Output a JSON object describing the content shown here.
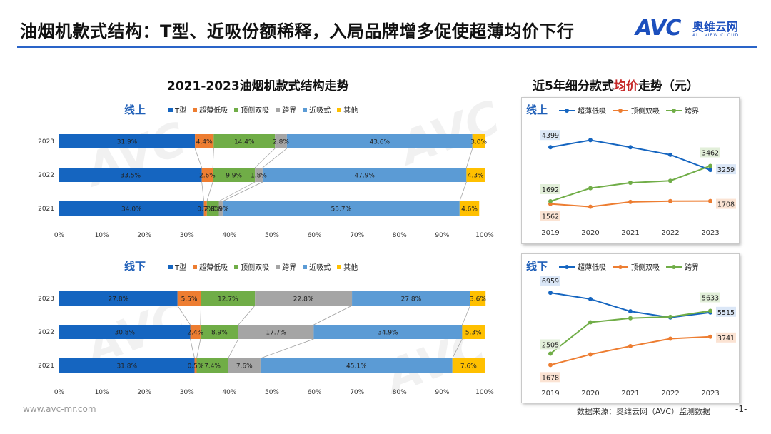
{
  "header": {
    "title": "油烟机款式结构：T型、近吸份额稀释，入局品牌增多促使超薄均价下行",
    "logo_text": "AVC",
    "logo_cn": "奥维云网",
    "logo_en": "ALL VIEW CLOUD"
  },
  "left": {
    "title": "2021-2023油烟机款式结构走势",
    "legend": [
      "T型",
      "超薄低吸",
      "顶侧双吸",
      "跨界",
      "近吸式",
      "其他"
    ]
  },
  "right": {
    "title_pre": "近5年细分款式",
    "title_em": "均价",
    "title_post": "走势（元）",
    "legend": [
      "超薄低吸",
      "顶侧双吸",
      "跨界"
    ]
  },
  "colors": {
    "t": "#1565c0",
    "ultra": "#ed7d31",
    "dual": "#70ad47",
    "cross": "#a5a5a5",
    "near": "#5b9bd5",
    "other": "#ffc000"
  },
  "chart_data": [
    {
      "type": "bar",
      "orientation": "horizontal",
      "stacked": "percent",
      "panel": "线上",
      "categories": [
        "2023",
        "2022",
        "2021"
      ],
      "series": [
        {
          "name": "T型",
          "values": [
            31.9,
            33.5,
            34.0
          ],
          "labels": [
            "31.9%",
            "33.5%",
            "34.0%"
          ]
        },
        {
          "name": "超薄低吸",
          "values": [
            4.4,
            2.6,
            0.7
          ],
          "labels": [
            "4.4%",
            "2.6%",
            "0.7%"
          ]
        },
        {
          "name": "顶侧双吸",
          "values": [
            14.4,
            9.9,
            2.8
          ],
          "labels": [
            "14.4%",
            "9.9%",
            "2.8%"
          ]
        },
        {
          "name": "跨界",
          "values": [
            2.8,
            1.8,
            0.9
          ],
          "labels": [
            "2.8%",
            "1.8%",
            "0.9%"
          ]
        },
        {
          "name": "近吸式",
          "values": [
            43.6,
            47.9,
            55.7
          ],
          "labels": [
            "43.6%",
            "47.9%",
            "55.7%"
          ]
        },
        {
          "name": "其他",
          "values": [
            3.0,
            4.3,
            4.6
          ],
          "labels": [
            "3.0%",
            "4.3%",
            "4.6%"
          ]
        }
      ],
      "xticks": [
        "0%",
        "10%",
        "20%",
        "30%",
        "40%",
        "50%",
        "60%",
        "70%",
        "80%",
        "90%",
        "100%"
      ],
      "xlim": [
        0,
        100
      ]
    },
    {
      "type": "bar",
      "orientation": "horizontal",
      "stacked": "percent",
      "panel": "线下",
      "categories": [
        "2023",
        "2022",
        "2021"
      ],
      "series": [
        {
          "name": "T型",
          "values": [
            27.8,
            30.8,
            31.8
          ],
          "labels": [
            "27.8%",
            "30.8%",
            "31.8%"
          ]
        },
        {
          "name": "超薄低吸",
          "values": [
            5.5,
            2.4,
            0.5
          ],
          "labels": [
            "5.5%",
            "2.4%",
            "0.5%"
          ]
        },
        {
          "name": "顶侧双吸",
          "values": [
            12.7,
            8.9,
            7.4
          ],
          "labels": [
            "12.7%",
            "8.9%",
            "7.4%"
          ]
        },
        {
          "name": "跨界",
          "values": [
            22.8,
            17.7,
            7.6
          ],
          "labels": [
            "22.8%",
            "17.7%",
            "7.6%"
          ]
        },
        {
          "name": "近吸式",
          "values": [
            27.8,
            34.9,
            45.1
          ],
          "labels": [
            "27.8%",
            "34.9%",
            "45.1%"
          ]
        },
        {
          "name": "其他",
          "values": [
            3.6,
            5.3,
            7.6
          ],
          "labels": [
            "3.6%",
            "5.3%",
            "7.6%"
          ]
        }
      ],
      "xticks": [
        "0%",
        "10%",
        "20%",
        "30%",
        "40%",
        "50%",
        "60%",
        "70%",
        "80%",
        "90%",
        "100%"
      ],
      "xlim": [
        0,
        100
      ]
    },
    {
      "type": "line",
      "panel": "线上",
      "x": [
        "2019",
        "2020",
        "2021",
        "2022",
        "2023"
      ],
      "series": [
        {
          "name": "超薄低吸",
          "values": [
            4399,
            4750,
            4399,
            4020,
            3259
          ]
        },
        {
          "name": "顶侧双吸",
          "values": [
            1562,
            1420,
            1660,
            1700,
            1708
          ]
        },
        {
          "name": "跨界",
          "values": [
            1692,
            2350,
            2620,
            2720,
            3462
          ]
        }
      ],
      "labels": [
        {
          "series": "超薄低吸",
          "x": "2019",
          "text": "4399"
        },
        {
          "series": "超薄低吸",
          "x": "2023",
          "text": "3259"
        },
        {
          "series": "顶侧双吸",
          "x": "2019",
          "text": "1562"
        },
        {
          "series": "顶侧双吸",
          "x": "2023",
          "text": "1708"
        },
        {
          "series": "跨界",
          "x": "2019",
          "text": "1692"
        },
        {
          "series": "跨界",
          "x": "2023",
          "text": "3462"
        }
      ],
      "ylim": [
        800,
        5300
      ]
    },
    {
      "type": "line",
      "panel": "线下",
      "x": [
        "2019",
        "2020",
        "2021",
        "2022",
        "2023"
      ],
      "series": [
        {
          "name": "超薄低吸",
          "values": [
            6959,
            6500,
            5600,
            5150,
            5515
          ]
        },
        {
          "name": "顶侧双吸",
          "values": [
            1678,
            2450,
            3050,
            3600,
            3741
          ]
        },
        {
          "name": "跨界",
          "values": [
            2505,
            4800,
            5100,
            5200,
            5633
          ]
        }
      ],
      "labels": [
        {
          "series": "超薄低吸",
          "x": "2019",
          "text": "6959"
        },
        {
          "series": "超薄低吸",
          "x": "2023",
          "text": "5515"
        },
        {
          "series": "顶侧双吸",
          "x": "2019",
          "text": "1678"
        },
        {
          "series": "顶侧双吸",
          "x": "2023",
          "text": "3741"
        },
        {
          "series": "跨界",
          "x": "2019",
          "text": "2505"
        },
        {
          "series": "跨界",
          "x": "2023",
          "text": "5633"
        }
      ],
      "ylim": [
        600,
        7800
      ]
    }
  ],
  "footer": {
    "site": "www.avc-mr.com",
    "source": "数据来源：奥维云网（AVC）监测数据",
    "page": "-1-"
  },
  "watermark": {
    "text": "AVC",
    "cn": "奥维云网",
    "en": "ALL VIEW CLOUD"
  }
}
